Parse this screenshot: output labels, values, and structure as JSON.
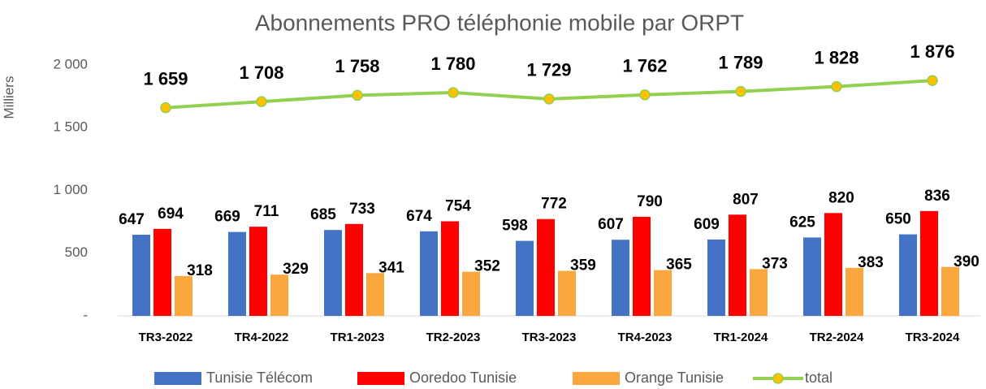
{
  "chart_data": {
    "type": "bar",
    "title": "Abonnements PRO téléphonie mobile par ORPT",
    "y_label": "Milliers",
    "categories": [
      "TR3-2022",
      "TR4-2022",
      "TR1-2023",
      "TR2-2023",
      "TR3-2023",
      "TR4-2023",
      "TR1-2024",
      "TR2-2024",
      "TR3-2024"
    ],
    "series": [
      {
        "name": "Tunisie Télécom",
        "type": "bar",
        "color": "#4472c4",
        "values": [
          647,
          669,
          685,
          674,
          598,
          607,
          609,
          625,
          650
        ]
      },
      {
        "name": "Ooredoo Tunisie",
        "type": "bar",
        "color": "#ff0000",
        "values": [
          694,
          711,
          733,
          754,
          772,
          790,
          807,
          820,
          836
        ]
      },
      {
        "name": "Orange Tunisie",
        "type": "bar",
        "color": "#f9a73e",
        "values": [
          318,
          329,
          341,
          352,
          359,
          365,
          373,
          383,
          390
        ]
      },
      {
        "name": "total",
        "type": "line",
        "color": "#92d050",
        "marker_color": "#ffc000",
        "values": [
          1659,
          1708,
          1758,
          1780,
          1729,
          1762,
          1789,
          1828,
          1876
        ],
        "value_labels": [
          "1 659",
          "1 708",
          "1 758",
          "1 780",
          "1 729",
          "1 762",
          "1 789",
          "1 828",
          "1 876"
        ]
      }
    ],
    "ylim": [
      0,
      2000
    ],
    "yticks": [
      {
        "value": 0,
        "label": "-"
      },
      500,
      {
        "value": 1000,
        "label": "1 000"
      },
      {
        "value": 1500,
        "label": "1 500"
      },
      {
        "value": 2000,
        "label": "2 000"
      }
    ],
    "grid": false
  }
}
